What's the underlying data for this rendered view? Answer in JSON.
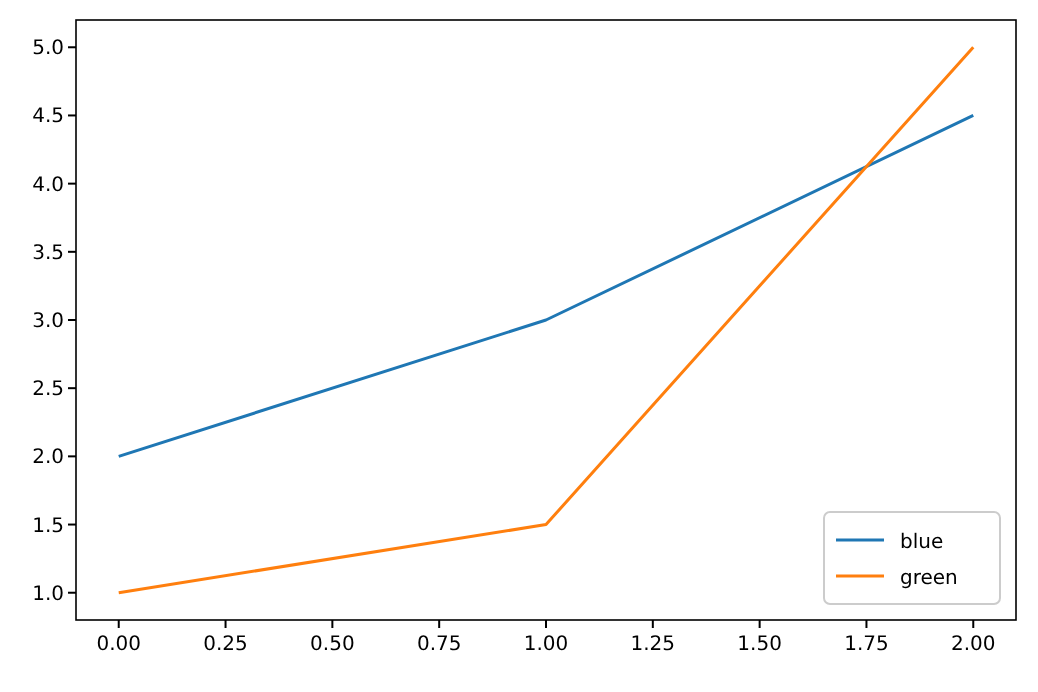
{
  "chart_data": {
    "type": "line",
    "x": [
      0,
      1,
      2
    ],
    "series": [
      {
        "name": "blue",
        "color": "#1f77b4",
        "values": [
          2,
          3,
          4.5
        ]
      },
      {
        "name": "green",
        "color": "#ff7f0e",
        "values": [
          1,
          1.5,
          5
        ]
      }
    ],
    "xlim": [
      -0.1,
      2.1
    ],
    "ylim": [
      0.8,
      5.2
    ],
    "xticks": [
      {
        "value": 0,
        "label": "0.00"
      },
      {
        "value": 0.25,
        "label": "0.25"
      },
      {
        "value": 0.5,
        "label": "0.50"
      },
      {
        "value": 0.75,
        "label": "0.75"
      },
      {
        "value": 1,
        "label": "1.00"
      },
      {
        "value": 1.25,
        "label": "1.25"
      },
      {
        "value": 1.5,
        "label": "1.50"
      },
      {
        "value": 1.75,
        "label": "1.75"
      },
      {
        "value": 2,
        "label": "2.00"
      }
    ],
    "yticks": [
      {
        "value": 1,
        "label": "1.0"
      },
      {
        "value": 1.5,
        "label": "1.5"
      },
      {
        "value": 2,
        "label": "2.0"
      },
      {
        "value": 2.5,
        "label": "2.5"
      },
      {
        "value": 3,
        "label": "3.0"
      },
      {
        "value": 3.5,
        "label": "3.5"
      },
      {
        "value": 4,
        "label": "4.0"
      },
      {
        "value": 4.5,
        "label": "4.5"
      },
      {
        "value": 5,
        "label": "5.0"
      }
    ],
    "legend": "bottom right",
    "grid": false,
    "marker": "none",
    "line_style": "solid"
  }
}
